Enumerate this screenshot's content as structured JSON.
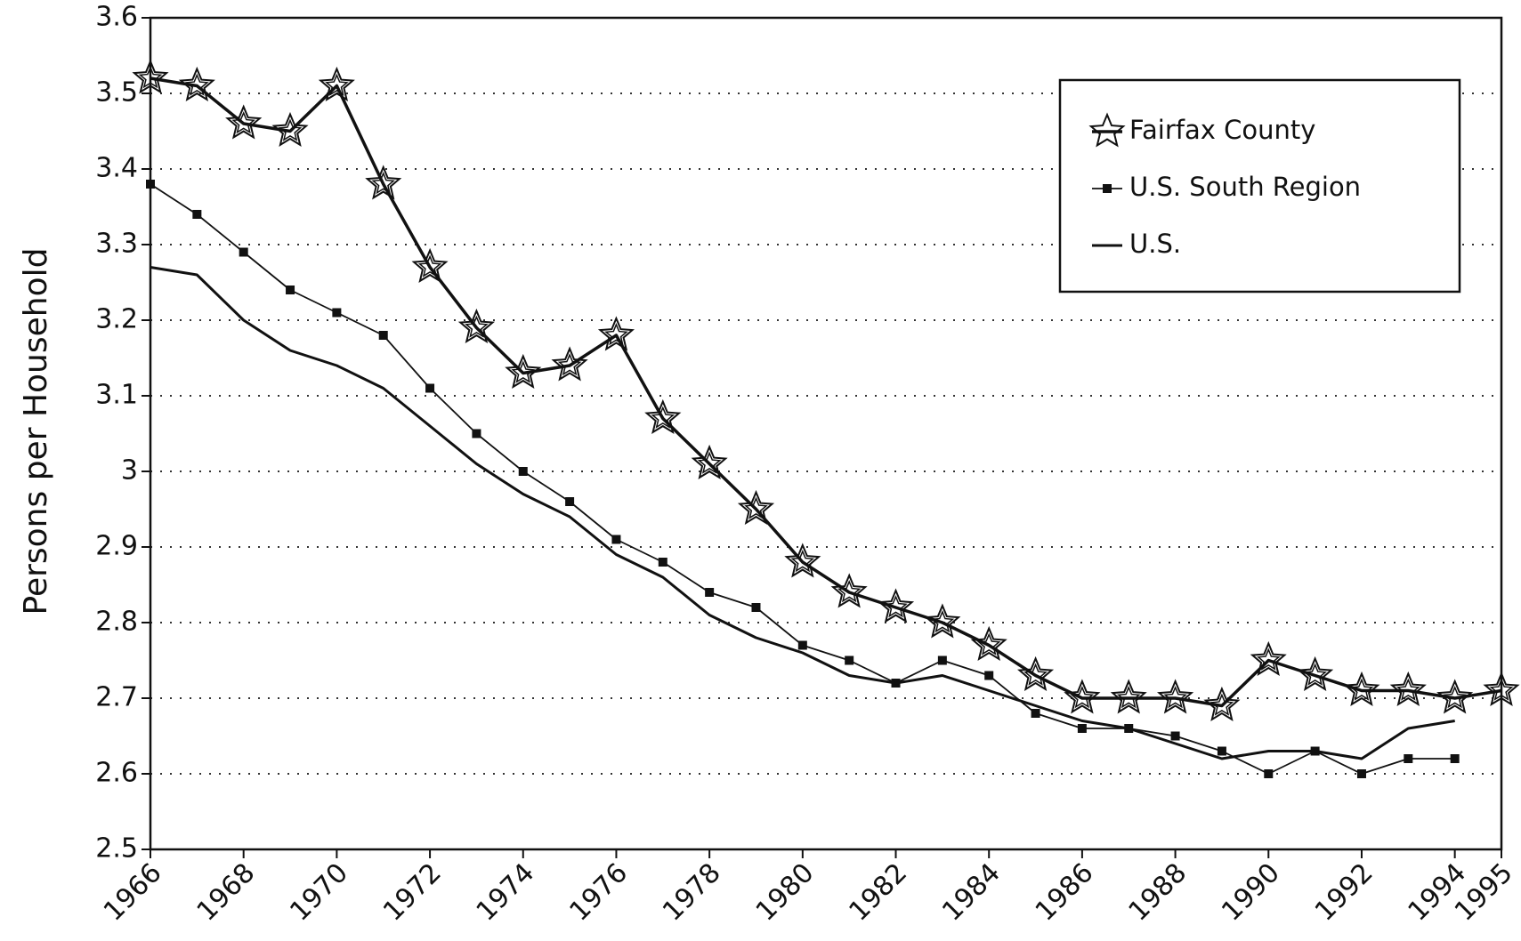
{
  "chart_data": {
    "type": "line",
    "y_label": "Persons per Household",
    "x": [
      1966,
      1967,
      1968,
      1969,
      1970,
      1971,
      1972,
      1973,
      1974,
      1975,
      1976,
      1977,
      1978,
      1979,
      1980,
      1981,
      1982,
      1983,
      1984,
      1985,
      1986,
      1987,
      1988,
      1989,
      1990,
      1991,
      1992,
      1993,
      1994,
      1995
    ],
    "series": [
      {
        "name": "Fairfax County",
        "color": "#111111",
        "marker": "star",
        "values": [
          3.52,
          3.51,
          3.46,
          3.45,
          3.51,
          3.38,
          3.27,
          3.19,
          3.13,
          3.14,
          3.18,
          3.07,
          3.01,
          2.95,
          2.88,
          2.84,
          2.82,
          2.8,
          2.77,
          2.73,
          2.7,
          2.7,
          2.7,
          2.69,
          2.75,
          2.73,
          2.71,
          2.71,
          2.7,
          2.71
        ]
      },
      {
        "name": "U.S. South Region",
        "color": "#111111",
        "marker": "square",
        "values": [
          3.38,
          3.34,
          3.29,
          3.24,
          3.21,
          3.18,
          3.11,
          3.05,
          3.0,
          2.96,
          2.91,
          2.88,
          2.84,
          2.82,
          2.77,
          2.75,
          2.72,
          2.75,
          2.73,
          2.68,
          2.66,
          2.66,
          2.65,
          2.63,
          2.6,
          2.63,
          2.6,
          2.62,
          2.62,
          null
        ]
      },
      {
        "name": "U.S.",
        "color": "#111111",
        "marker": "none",
        "values": [
          3.27,
          3.26,
          3.2,
          3.16,
          3.14,
          3.11,
          3.06,
          3.01,
          2.97,
          2.94,
          2.89,
          2.86,
          2.81,
          2.78,
          2.76,
          2.73,
          2.72,
          2.73,
          2.71,
          2.69,
          2.67,
          2.66,
          2.64,
          2.62,
          2.63,
          2.63,
          2.62,
          2.66,
          2.67,
          null
        ]
      }
    ],
    "xlim": [
      1966,
      1995
    ],
    "xticks": [
      1966,
      1968,
      1970,
      1972,
      1974,
      1976,
      1978,
      1980,
      1982,
      1984,
      1986,
      1988,
      1990,
      1992,
      1994,
      1995
    ],
    "ylim": [
      2.5,
      3.6
    ],
    "yticks": [
      2.5,
      2.6,
      2.7,
      2.8,
      2.9,
      3,
      3.1,
      3.2,
      3.3,
      3.4,
      3.5,
      3.6
    ],
    "grid": true,
    "legend": "upper right"
  }
}
